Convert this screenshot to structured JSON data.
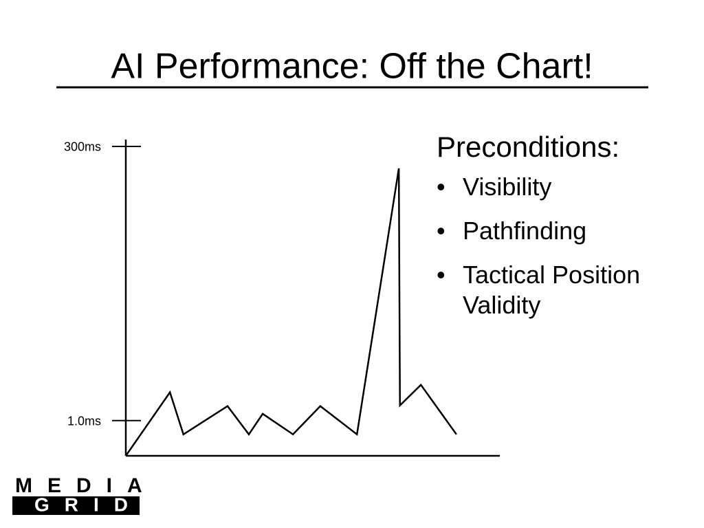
{
  "slide": {
    "title": "AI Performance:  Off the Chart!",
    "heading": "Preconditions:",
    "bullets": [
      "Visibility",
      "Pathfinding",
      "Tactical Position Validity"
    ]
  },
  "chart_data": {
    "type": "line",
    "log_scale_y": true,
    "color": "#000000",
    "x": [
      0,
      11.8,
      15.4,
      27.2,
      32.9,
      36.6,
      44.7,
      52.0,
      61.8,
      73.0,
      73.3,
      78.9,
      88.4
    ],
    "values": [
      0.48,
      1.8,
      0.75,
      1.35,
      0.75,
      1.15,
      0.75,
      1.35,
      0.75,
      190,
      1.37,
      2.1,
      0.75
    ],
    "xlim": [
      0,
      100
    ],
    "ylim": [
      0.48,
      346
    ],
    "yticks": [
      {
        "value": 300,
        "label": "300ms"
      },
      {
        "value": 1.0,
        "label": "1.0ms"
      }
    ]
  },
  "logo": {
    "top": "MEDIA",
    "bottom": "GRID"
  }
}
